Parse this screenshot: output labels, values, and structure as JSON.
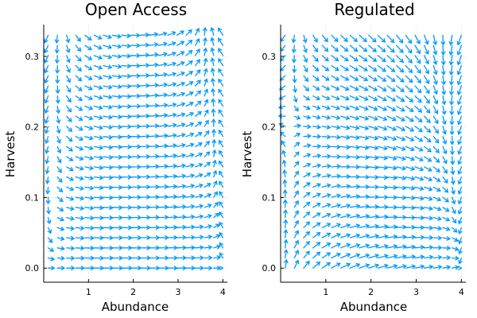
{
  "chart_data": [
    {
      "type": "quiver",
      "title": "Open Access",
      "xlabel": "Abundance",
      "ylabel": "Harvest",
      "xlim": [
        0.0,
        4.1
      ],
      "ylim": [
        -0.02,
        0.345
      ],
      "xticks": [
        1,
        2,
        3,
        4
      ],
      "yticks": [
        0.0,
        0.1,
        0.2,
        0.3
      ],
      "xtick_labels": [
        "1",
        "2",
        "3",
        "4"
      ],
      "ytick_labels": [
        "0.0",
        "0.1",
        "0.2",
        "0.3"
      ],
      "grid": true,
      "legend": "none",
      "series_color": "#009AFA",
      "field": {
        "model": "open-access",
        "x_range": [
          0.1,
          4.0
        ],
        "y_range": [
          0.0,
          0.33
        ],
        "x_count": 20,
        "y_count": 24
      }
    },
    {
      "type": "quiver",
      "title": "Regulated",
      "xlabel": "Abundance",
      "ylabel": "Harvest",
      "xlim": [
        0.0,
        4.1
      ],
      "ylim": [
        -0.02,
        0.345
      ],
      "xticks": [
        1,
        2,
        3,
        4
      ],
      "yticks": [
        0.0,
        0.1,
        0.2,
        0.3
      ],
      "xtick_labels": [
        "1",
        "2",
        "3",
        "4"
      ],
      "ytick_labels": [
        "0.0",
        "0.1",
        "0.2",
        "0.3"
      ],
      "grid": true,
      "legend": "none",
      "series_color": "#009AFA",
      "field": {
        "model": "regulated",
        "x_range": [
          0.1,
          4.0
        ],
        "y_range": [
          0.0,
          0.33
        ],
        "x_count": 20,
        "y_count": 24
      }
    }
  ]
}
